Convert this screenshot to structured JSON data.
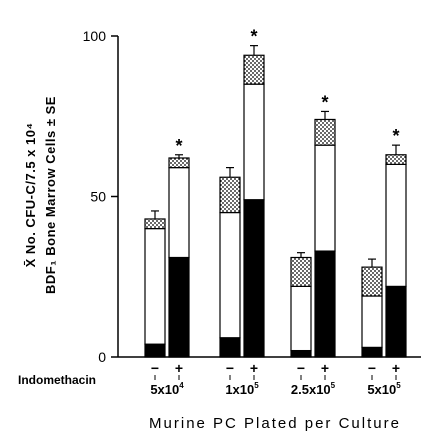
{
  "chart_data": {
    "type": "bar",
    "stacked": true,
    "ylabel_line1": "X̄ No. CFU-C/7.5 x 10⁴",
    "ylabel_line2": "BDF₁ Bone Marrow Cells ± SE",
    "xlabel": "Murine  PC  Plated  per  Culture",
    "condition_label": "Indomethacin",
    "ylim": [
      0,
      100
    ],
    "yticks": [
      0,
      50,
      100
    ],
    "segment_styles": {
      "black": {
        "fill": "#000000"
      },
      "white": {
        "fill": "#ffffff"
      },
      "stippled": {
        "fill": "dotted"
      }
    },
    "groups": [
      {
        "label_base": "5x10",
        "label_exp": "4",
        "bars": [
          {
            "sign": "−",
            "black": 4,
            "white": 36,
            "stippled": 3,
            "total": 43,
            "se": 2.5,
            "significant": false
          },
          {
            "sign": "+",
            "black": 31,
            "white": 28,
            "stippled": 3,
            "total": 62,
            "se": 1.0,
            "significant": true
          }
        ]
      },
      {
        "label_base": "1x10",
        "label_exp": "5",
        "bars": [
          {
            "sign": "−",
            "black": 6,
            "white": 39,
            "stippled": 11,
            "total": 56,
            "se": 3.0,
            "significant": false
          },
          {
            "sign": "+",
            "black": 49,
            "white": 36,
            "stippled": 9,
            "total": 94,
            "se": 3.0,
            "significant": true
          }
        ]
      },
      {
        "label_base": "2.5x10",
        "label_exp": "5",
        "bars": [
          {
            "sign": "−",
            "black": 2,
            "white": 20,
            "stippled": 9,
            "total": 31,
            "se": 1.5,
            "significant": false
          },
          {
            "sign": "+",
            "black": 33,
            "white": 33,
            "stippled": 8,
            "total": 74,
            "se": 2.5,
            "significant": true
          }
        ]
      },
      {
        "label_base": "5x10",
        "label_exp": "5",
        "bars": [
          {
            "sign": "−",
            "black": 3,
            "white": 16,
            "stippled": 9,
            "total": 28,
            "se": 2.5,
            "significant": false
          },
          {
            "sign": "+",
            "black": 22,
            "white": 38,
            "stippled": 3,
            "total": 63,
            "se": 3.0,
            "significant": true
          }
        ]
      }
    ]
  }
}
